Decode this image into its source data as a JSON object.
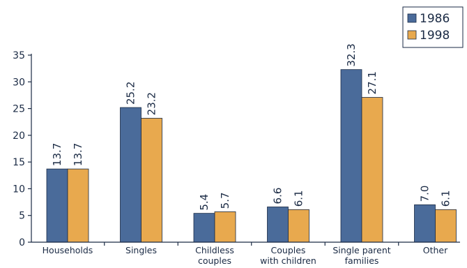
{
  "chart_data": {
    "type": "bar",
    "categories": [
      [
        "Households"
      ],
      [
        "Singles"
      ],
      [
        "Childless",
        "couples"
      ],
      [
        "Couples",
        "with children"
      ],
      [
        "Single parent",
        "families"
      ],
      [
        "Other"
      ]
    ],
    "series": [
      {
        "name": "1986",
        "color": "#4a6b9a",
        "values": [
          13.7,
          25.2,
          5.4,
          6.6,
          32.3,
          7.0
        ],
        "labels": [
          "13.7",
          "25.2",
          "5.4",
          "6.6",
          "32.3",
          "7.0"
        ]
      },
      {
        "name": "1998",
        "color": "#e8a94e",
        "values": [
          13.7,
          23.2,
          5.7,
          6.1,
          27.1,
          6.1
        ],
        "labels": [
          "13.7",
          "23.2",
          "5.7",
          "6.1",
          "27.1",
          "6.1"
        ]
      }
    ],
    "yticks": [
      0,
      5,
      10,
      15,
      20,
      25,
      30,
      35
    ],
    "ylim": [
      0,
      35
    ],
    "grid": false,
    "legend_position": "top-right"
  }
}
